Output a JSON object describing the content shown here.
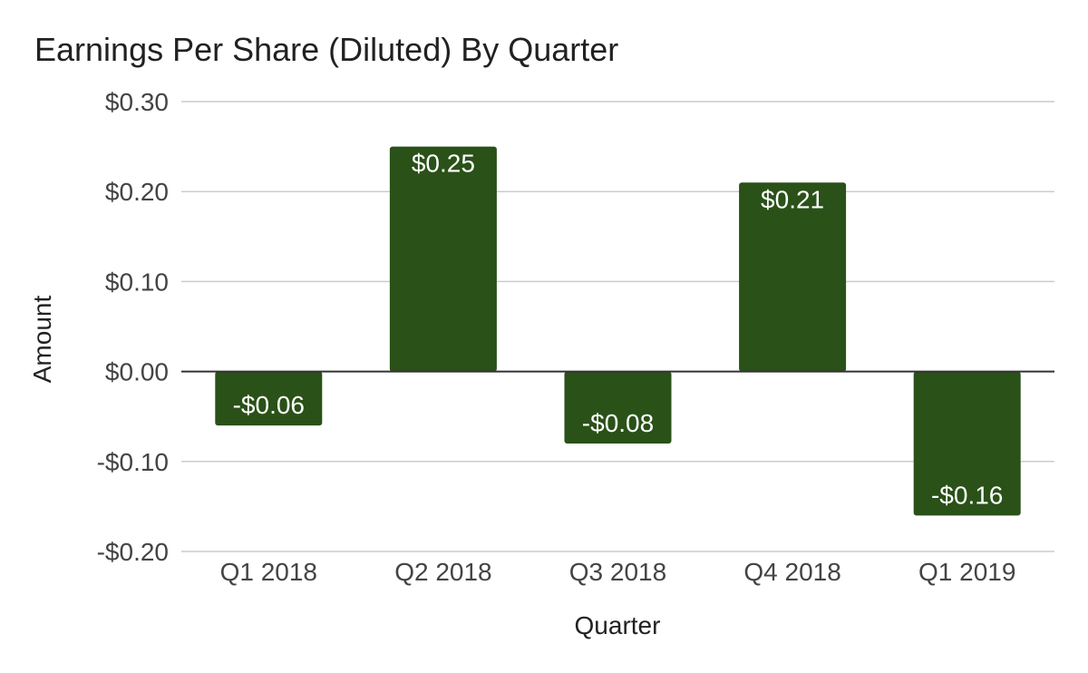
{
  "chart_data": {
    "type": "bar",
    "title": "Earnings Per Share (Diluted) By Quarter",
    "xlabel": "Quarter",
    "ylabel": "Amount",
    "categories": [
      "Q1 2018",
      "Q2 2018",
      "Q3 2018",
      "Q4 2018",
      "Q1 2019"
    ],
    "values": [
      -0.06,
      0.25,
      -0.08,
      0.21,
      -0.16
    ],
    "value_labels": [
      "-$0.06",
      "$0.25",
      "-$0.08",
      "$0.21",
      "-$0.16"
    ],
    "ylim": [
      -0.2,
      0.3
    ],
    "yticks": [
      0.3,
      0.2,
      0.1,
      0.0,
      -0.1,
      -0.2
    ],
    "ytick_labels": [
      "$0.30",
      "$0.20",
      "$0.10",
      "$0.00",
      "-$0.10",
      "-$0.20"
    ],
    "grid": true,
    "legend": "none",
    "colors": {
      "bar": "#2a5118",
      "grid": "#cccccc",
      "zero_line": "#333333"
    }
  }
}
